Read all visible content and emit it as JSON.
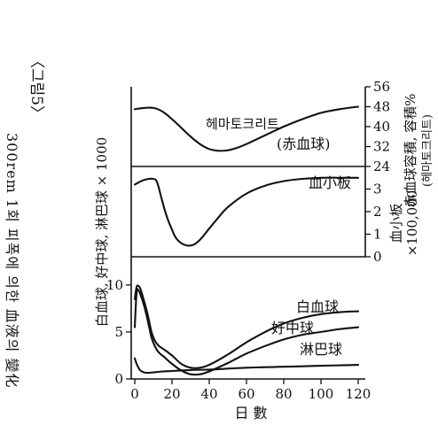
{
  "side_caption": {
    "figure_label": "〈그림5〉",
    "line1": "300rem 1회 피폭에 의한 血液의 變化"
  },
  "chart_data": [
    {
      "panel": "hematocrit",
      "type": "line",
      "right_axis_label": "赤血球容積, 容積%",
      "right_axis_sublabel": "(헤마토크리트)",
      "yticks": [
        24,
        32,
        40,
        48,
        56
      ],
      "ylim": [
        24,
        56
      ],
      "series": [
        {
          "name": "헤마토크리트 (赤血球)",
          "x": [
            0,
            5,
            10,
            15,
            20,
            25,
            30,
            35,
            40,
            45,
            50,
            55,
            60,
            70,
            80,
            90,
            100,
            110,
            120
          ],
          "y": [
            47,
            47.5,
            47.5,
            46,
            43,
            39.5,
            36,
            33,
            31,
            30.3,
            30.5,
            31.5,
            33,
            36.5,
            40,
            43,
            45.5,
            47,
            48
          ]
        }
      ],
      "series_labels": [
        "헤마토크리트",
        "(赤血球)"
      ]
    },
    {
      "panel": "platelets",
      "type": "line",
      "right_axis_label": "血小板",
      "right_axis_sublabel": "×100,000",
      "yticks": [
        0,
        1,
        2,
        3
      ],
      "ylim": [
        0,
        4
      ],
      "series": [
        {
          "name": "血小板",
          "x": [
            0,
            5,
            10,
            12,
            14,
            16,
            18,
            20,
            22,
            25,
            28,
            30,
            32,
            35,
            40,
            45,
            50,
            60,
            70,
            80,
            90,
            100,
            110,
            120
          ],
          "y": [
            3.2,
            3.4,
            3.45,
            3.3,
            2.7,
            2.1,
            1.6,
            1.2,
            0.85,
            0.6,
            0.5,
            0.5,
            0.55,
            0.75,
            1.25,
            1.75,
            2.2,
            2.8,
            3.15,
            3.35,
            3.45,
            3.5,
            3.5,
            3.5
          ]
        }
      ],
      "series_labels": [
        "血小板"
      ]
    },
    {
      "panel": "leukocytes",
      "type": "line",
      "left_axis_label": "白血球, 好中球, 淋巴球 × 1000",
      "xlabel": "日 數",
      "xticks": [
        0,
        20,
        40,
        60,
        80,
        100,
        120
      ],
      "xlim": [
        0,
        120
      ],
      "yticks": [
        0,
        5,
        10
      ],
      "ylim": [
        0,
        13
      ],
      "series": [
        {
          "name": "白血球",
          "x": [
            0,
            1,
            2,
            3,
            5,
            7,
            9,
            11,
            13,
            16,
            20,
            25,
            30,
            35,
            40,
            50,
            60,
            70,
            80,
            90,
            100,
            110,
            120
          ],
          "y": [
            8.5,
            9.8,
            9.9,
            9.6,
            8.3,
            6.8,
            5.0,
            4.0,
            3.5,
            3.1,
            2.5,
            1.6,
            1.2,
            1.2,
            1.5,
            2.6,
            3.9,
            5.0,
            5.9,
            6.5,
            6.9,
            7.1,
            7.2
          ]
        },
        {
          "name": "好中球",
          "x": [
            0,
            1,
            2,
            3,
            5,
            7,
            9,
            11,
            13,
            16,
            20,
            25,
            30,
            35,
            40,
            50,
            60,
            70,
            80,
            90,
            100,
            110,
            120
          ],
          "y": [
            5.5,
            9.2,
            9.4,
            9.0,
            7.8,
            6.2,
            4.4,
            3.4,
            2.8,
            2.3,
            1.6,
            0.9,
            0.5,
            0.5,
            0.8,
            1.7,
            2.7,
            3.5,
            4.2,
            4.7,
            5.0,
            5.3,
            5.5
          ]
        },
        {
          "name": "淋巴球",
          "x": [
            0,
            1,
            2,
            3,
            5,
            7,
            10,
            15,
            20,
            25,
            30,
            40,
            50,
            60,
            70,
            80,
            90,
            100,
            110,
            120
          ],
          "y": [
            2.2,
            1.6,
            1.2,
            0.9,
            0.7,
            0.65,
            0.7,
            0.8,
            0.85,
            0.9,
            0.95,
            1.0,
            1.1,
            1.2,
            1.25,
            1.3,
            1.35,
            1.4,
            1.45,
            1.5
          ]
        }
      ],
      "series_labels": [
        "白血球",
        "好中球",
        "淋巴球"
      ]
    }
  ]
}
